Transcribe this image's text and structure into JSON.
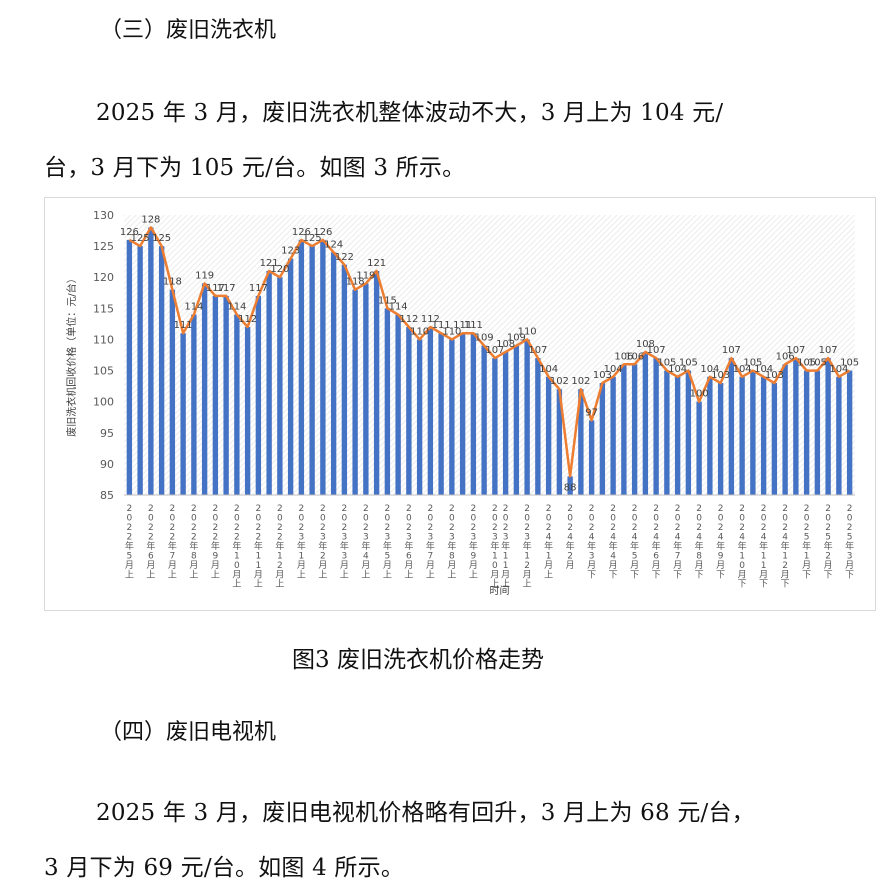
{
  "section3": {
    "heading": "（三）废旧洗衣机",
    "para_line1": "2025 年 3 月，废旧洗衣机整体波动不大，3 月上为 104 元/",
    "para_line2": "台，3 月下为 105 元/台。如图 3 所示。",
    "caption": "图3  废旧洗衣机价格走势"
  },
  "section4": {
    "heading": "（四）废旧电视机",
    "para_line1": "2025 年 3 月，废旧电视机价格略有回升，3 月上为 68 元/台，",
    "para_line2": "3 月下为 69 元/台。如图 4 所示。"
  },
  "chart_data": {
    "type": "bar",
    "title": "",
    "xlabel": "时间",
    "ylabel": "废旧洗衣机回收价格（单位：元/台）",
    "ylim": [
      85,
      130
    ],
    "yticks": [
      85,
      90,
      95,
      100,
      105,
      110,
      115,
      120,
      125,
      130
    ],
    "grid": false,
    "bar_color": "#4472C4",
    "line_color": "#ED7D31",
    "x_tick_labels": [
      "2022年5月上",
      "2022年6月上",
      "2022年7月上",
      "2022年8月上",
      "2022年9月上",
      "2022年10月上",
      "2022年11月上",
      "2022年12月上",
      "2023年1月上",
      "2023年2月上",
      "2023年3月上",
      "2023年4月上",
      "2023年5月上",
      "2023年6月上",
      "2023年7月上",
      "2023年8月上",
      "2023年9月上",
      "2023年10月上",
      "2023年11月上",
      "2023年12月上",
      "2024年1月上",
      "2024年2月",
      "2024年3月下",
      "2024年4月下",
      "2024年5月下",
      "2024年6月下",
      "2024年7月下",
      "2024年8月下",
      "2024年9月下",
      "2024年10月下",
      "2024年11月下",
      "2024年12月下",
      "2025年1月下",
      "2025年2月下",
      "2025年3月下"
    ],
    "values": [
      126,
      125,
      128,
      125,
      118,
      111,
      114,
      119,
      117,
      117,
      114,
      112,
      117,
      121,
      120,
      123,
      126,
      125,
      126,
      124,
      122,
      118,
      119,
      121,
      115,
      114,
      112,
      110,
      112,
      111,
      110,
      111,
      111,
      109,
      107,
      108,
      109,
      110,
      107,
      104,
      102,
      88,
      102,
      97,
      103,
      104,
      106,
      106,
      108,
      107,
      105,
      104,
      105,
      100,
      104,
      103,
      107,
      104,
      105,
      104,
      103,
      106,
      107,
      105,
      105,
      107,
      104,
      105
    ]
  }
}
